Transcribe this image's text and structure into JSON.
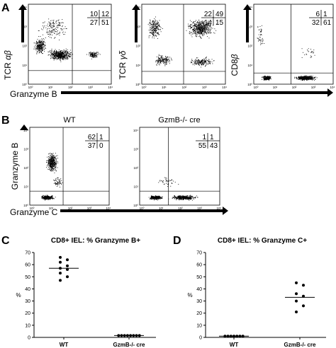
{
  "panel_labels": [
    "A",
    "B",
    "C",
    "D"
  ],
  "panel_a": {
    "x_label": "Granzyme B",
    "plots": [
      {
        "y_label_main": "TCR ",
        "y_label_greek": "αβ",
        "quadrants": [
          "10",
          "12",
          "27",
          "51"
        ]
      },
      {
        "y_label_main": "TCR ",
        "y_label_greek": "γδ",
        "quadrants": [
          "22",
          "49",
          "14",
          "15"
        ]
      },
      {
        "y_label_main": "CD8",
        "y_label_greek": "β",
        "quadrants": [
          "6",
          "1",
          "32",
          "61"
        ]
      }
    ]
  },
  "panel_b": {
    "y_label": "Granzyme B",
    "x_label": "Granzyme C",
    "plots": [
      {
        "title": "WT",
        "quadrants": [
          "62",
          "1",
          "37",
          "0"
        ]
      },
      {
        "title": "GzmB-/- cre",
        "quadrants": [
          "1",
          "1",
          "55",
          "43"
        ]
      }
    ]
  },
  "axis_ticks": [
    "10⁰",
    "10¹",
    "10²",
    "10³",
    "10⁴"
  ],
  "chart_data": [
    {
      "type": "scatter",
      "title": "CD8+ IEL: % Granzyme B+",
      "ylabel": "%",
      "xlabel": "",
      "ylim": [
        0,
        70
      ],
      "yticks": [
        0,
        10,
        20,
        30,
        40,
        50,
        60,
        70
      ],
      "categories": [
        "WT",
        "GzmB-/- cre"
      ],
      "series": [
        {
          "category": "WT",
          "values": [
            66,
            64,
            62,
            59,
            57,
            56,
            53,
            50,
            47
          ],
          "mean": 57
        },
        {
          "category": "GzmB-/- cre",
          "values": [
            1.5,
            1.5,
            1.5,
            1.5,
            1.5,
            1.5,
            1.5,
            1.5
          ],
          "mean": 1.5
        }
      ]
    },
    {
      "type": "scatter",
      "title": "CD8+ IEL: % Granzyme C+",
      "ylabel": "%",
      "xlabel": "",
      "ylim": [
        0,
        70
      ],
      "yticks": [
        0,
        10,
        20,
        30,
        40,
        50,
        60,
        70
      ],
      "categories": [
        "WT",
        "GzmB-/- cre"
      ],
      "series": [
        {
          "category": "WT",
          "values": [
            1,
            1,
            1,
            1,
            1,
            1,
            1
          ],
          "mean": 1
        },
        {
          "category": "GzmB-/- cre",
          "values": [
            45,
            43,
            36,
            34,
            30,
            26,
            21
          ],
          "mean": 33
        }
      ]
    }
  ]
}
